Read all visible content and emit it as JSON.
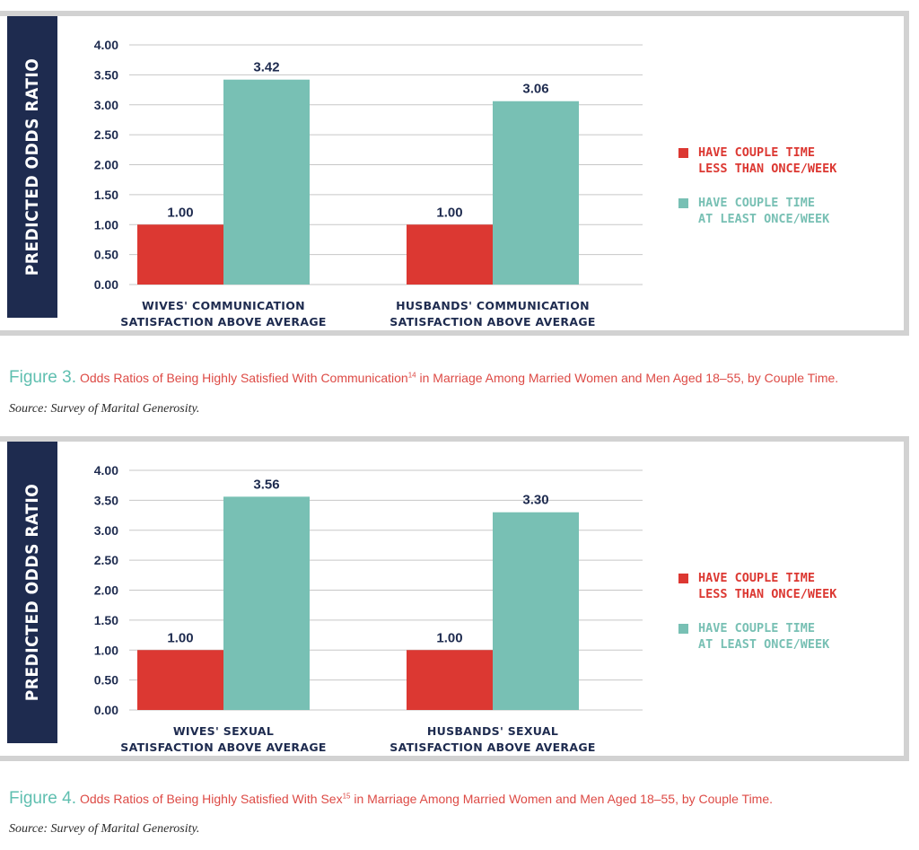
{
  "colors": {
    "red": "#dc3832",
    "teal": "#78c0b4",
    "navy": "#1e2b4f",
    "grid": "#c7c7c7",
    "caption": "#dd4a45",
    "figlabel": "#5fbfb0"
  },
  "chart_data": [
    {
      "type": "bar",
      "ylabel": "PREDICTED ODDS RATIO",
      "ylim": [
        0,
        4
      ],
      "yticks": [
        "0.00",
        "0.50",
        "1.00",
        "1.50",
        "2.00",
        "2.50",
        "3.00",
        "3.50",
        "4.00"
      ],
      "grid": true,
      "legend_position": "right",
      "categories": [
        [
          "WIVES' COMMUNICATION",
          "SATISFACTION ABOVE AVERAGE"
        ],
        [
          "HUSBANDS' COMMUNICATION",
          "SATISFACTION ABOVE AVERAGE"
        ]
      ],
      "series": [
        {
          "name": [
            "HAVE COUPLE TIME",
            "LESS THAN ONCE/WEEK"
          ],
          "color": "#dc3832",
          "values": [
            1.0,
            1.0
          ],
          "labels": [
            "1.00",
            "1.00"
          ]
        },
        {
          "name": [
            "HAVE COUPLE TIME",
            "AT LEAST ONCE/WEEK"
          ],
          "color": "#78c0b4",
          "values": [
            3.42,
            3.06
          ],
          "labels": [
            "3.42",
            "3.06"
          ]
        }
      ]
    },
    {
      "type": "bar",
      "ylabel": "PREDICTED ODDS RATIO",
      "ylim": [
        0,
        4
      ],
      "yticks": [
        "0.00",
        "0.50",
        "1.00",
        "1.50",
        "2.00",
        "2.50",
        "3.00",
        "3.50",
        "4.00"
      ],
      "grid": true,
      "legend_position": "right",
      "categories": [
        [
          "WIVES' SEXUAL",
          "SATISFACTION ABOVE AVERAGE"
        ],
        [
          "HUSBANDS' SEXUAL",
          "SATISFACTION ABOVE AVERAGE"
        ]
      ],
      "series": [
        {
          "name": [
            "HAVE COUPLE TIME",
            "LESS THAN ONCE/WEEK"
          ],
          "color": "#dc3832",
          "values": [
            1.0,
            1.0
          ],
          "labels": [
            "1.00",
            "1.00"
          ]
        },
        {
          "name": [
            "HAVE COUPLE TIME",
            "AT LEAST ONCE/WEEK"
          ],
          "color": "#78c0b4",
          "values": [
            3.56,
            3.3
          ],
          "labels": [
            "3.56",
            "3.30"
          ]
        }
      ]
    }
  ],
  "captions": [
    {
      "fig_label": "Figure 3.",
      "text_before": "Odds Ratios of Being Highly Satisfied With Communication",
      "sup": "14",
      "text_after": " in Marriage Among Married Women and Men Aged 18–55, by Couple Time.",
      "source": "Source: Survey of Marital Generosity."
    },
    {
      "fig_label": "Figure 4.",
      "text_before": "Odds Ratios of Being Highly Satisfied With Sex",
      "sup": "15",
      "text_after": " in Marriage Among Married Women and Men Aged 18–55,  by Couple Time.",
      "source": "Source: Survey of Marital Generosity."
    }
  ]
}
